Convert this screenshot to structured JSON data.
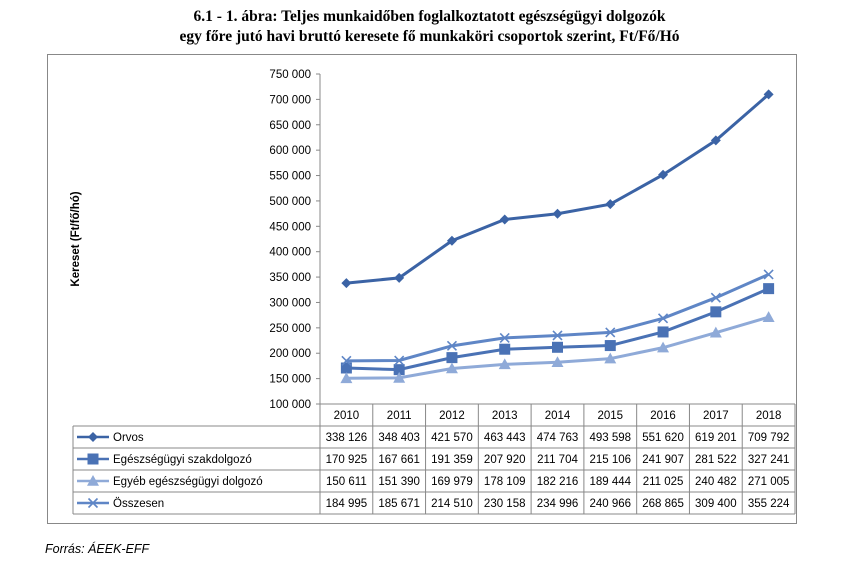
{
  "title": {
    "line1": "6.1 - 1. ábra: Teljes munkaidőben foglalkoztatott egészségügyi dolgozók",
    "line2": "egy főre jutó havi bruttó keresete fő munkaköri csoportok szerint, Ft/Fő/Hó"
  },
  "source": "Forrás: ÁEEK-EFF",
  "colors": {
    "series1": "#3b63a5",
    "series2": "#4a72b5",
    "series3": "#8faad8",
    "series4": "#5f86c6"
  },
  "chart_data": {
    "type": "line",
    "ylabel": "Kereset (Ft/fő/hó)",
    "ylim": [
      100000,
      750000
    ],
    "ytick_step": 50000,
    "ytick_labels": [
      "100 000",
      "150 000",
      "200 000",
      "250 000",
      "300 000",
      "350 000",
      "400 000",
      "450 000",
      "500 000",
      "550 000",
      "600 000",
      "650 000",
      "700 000",
      "750 000"
    ],
    "grid": false,
    "legend": "table-below",
    "x": [
      "2010",
      "2011",
      "2012",
      "2013",
      "2014",
      "2015",
      "2016",
      "2017",
      "2018"
    ],
    "series": [
      {
        "name": "Orvos",
        "marker": "diamond",
        "values": [
          338126,
          348403,
          421570,
          463443,
          474763,
          493598,
          551620,
          619201,
          709792
        ],
        "labels": [
          "338 126",
          "348 403",
          "421 570",
          "463 443",
          "474 763",
          "493 598",
          "551 620",
          "619 201",
          "709 792"
        ]
      },
      {
        "name": "Egészségügyi szakdolgozó",
        "marker": "square",
        "values": [
          170925,
          167661,
          191359,
          207920,
          211704,
          215106,
          241907,
          281522,
          327241
        ],
        "labels": [
          "170 925",
          "167 661",
          "191 359",
          "207 920",
          "211 704",
          "215 106",
          "241 907",
          "281 522",
          "327 241"
        ]
      },
      {
        "name": "Egyéb egészségügyi dolgozó",
        "marker": "triangle",
        "values": [
          150611,
          151390,
          169979,
          178109,
          182216,
          189444,
          211025,
          240482,
          271005
        ],
        "labels": [
          "150 611",
          "151 390",
          "169 979",
          "178 109",
          "182 216",
          "189 444",
          "211 025",
          "240 482",
          "271 005"
        ]
      },
      {
        "name": "Összesen",
        "marker": "x",
        "values": [
          184995,
          185671,
          214510,
          230158,
          234996,
          240966,
          268865,
          309400,
          355224
        ],
        "labels": [
          "184 995",
          "185 671",
          "214 510",
          "230 158",
          "234 996",
          "240 966",
          "268 865",
          "309 400",
          "355 224"
        ]
      }
    ]
  }
}
